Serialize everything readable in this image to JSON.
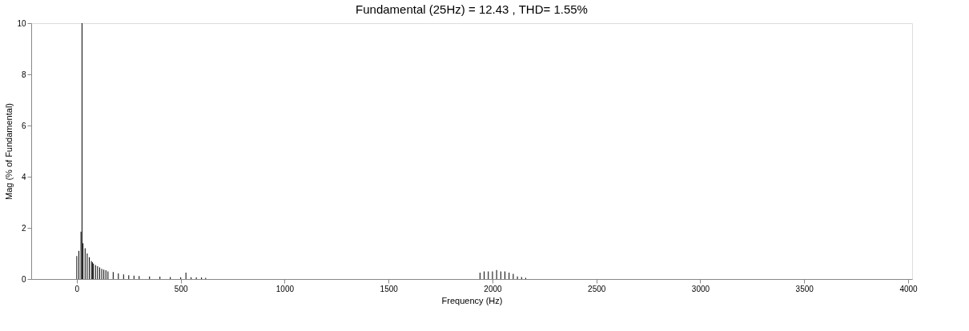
{
  "chart_data": {
    "type": "bar",
    "title": "Fundamental (25Hz) = 12.43 , THD= 1.55%",
    "xlabel": "Frequency (Hz)",
    "ylabel": "Mag (% of Fundamental)",
    "x": [
      0,
      10,
      20,
      25,
      30,
      40,
      50,
      60,
      70,
      75,
      80,
      90,
      100,
      110,
      120,
      130,
      140,
      150,
      175,
      200,
      225,
      250,
      275,
      300,
      350,
      400,
      450,
      500,
      525,
      550,
      575,
      600,
      620,
      1940,
      1960,
      1980,
      2000,
      2020,
      2040,
      2060,
      2080,
      2100,
      2120,
      2140,
      2160
    ],
    "values": [
      0.9,
      1.1,
      1.85,
      10,
      1.4,
      1.2,
      1.0,
      0.85,
      0.7,
      0.66,
      0.6,
      0.55,
      0.5,
      0.45,
      0.4,
      0.37,
      0.34,
      0.3,
      0.27,
      0.22,
      0.18,
      0.15,
      0.13,
      0.12,
      0.1,
      0.09,
      0.08,
      0.07,
      0.25,
      0.07,
      0.06,
      0.06,
      0.05,
      0.25,
      0.3,
      0.3,
      0.3,
      0.35,
      0.3,
      0.3,
      0.25,
      0.2,
      0.1,
      0.08,
      0.05
    ],
    "color": "#000000",
    "xlim": [
      -200,
      4000
    ],
    "xticks": [
      0,
      500,
      1000,
      1500,
      2000,
      2500,
      3000,
      3500,
      4000
    ],
    "ylim": [
      0,
      10
    ],
    "yticks": [
      0,
      2,
      4,
      6,
      8,
      10
    ],
    "grid": false
  }
}
